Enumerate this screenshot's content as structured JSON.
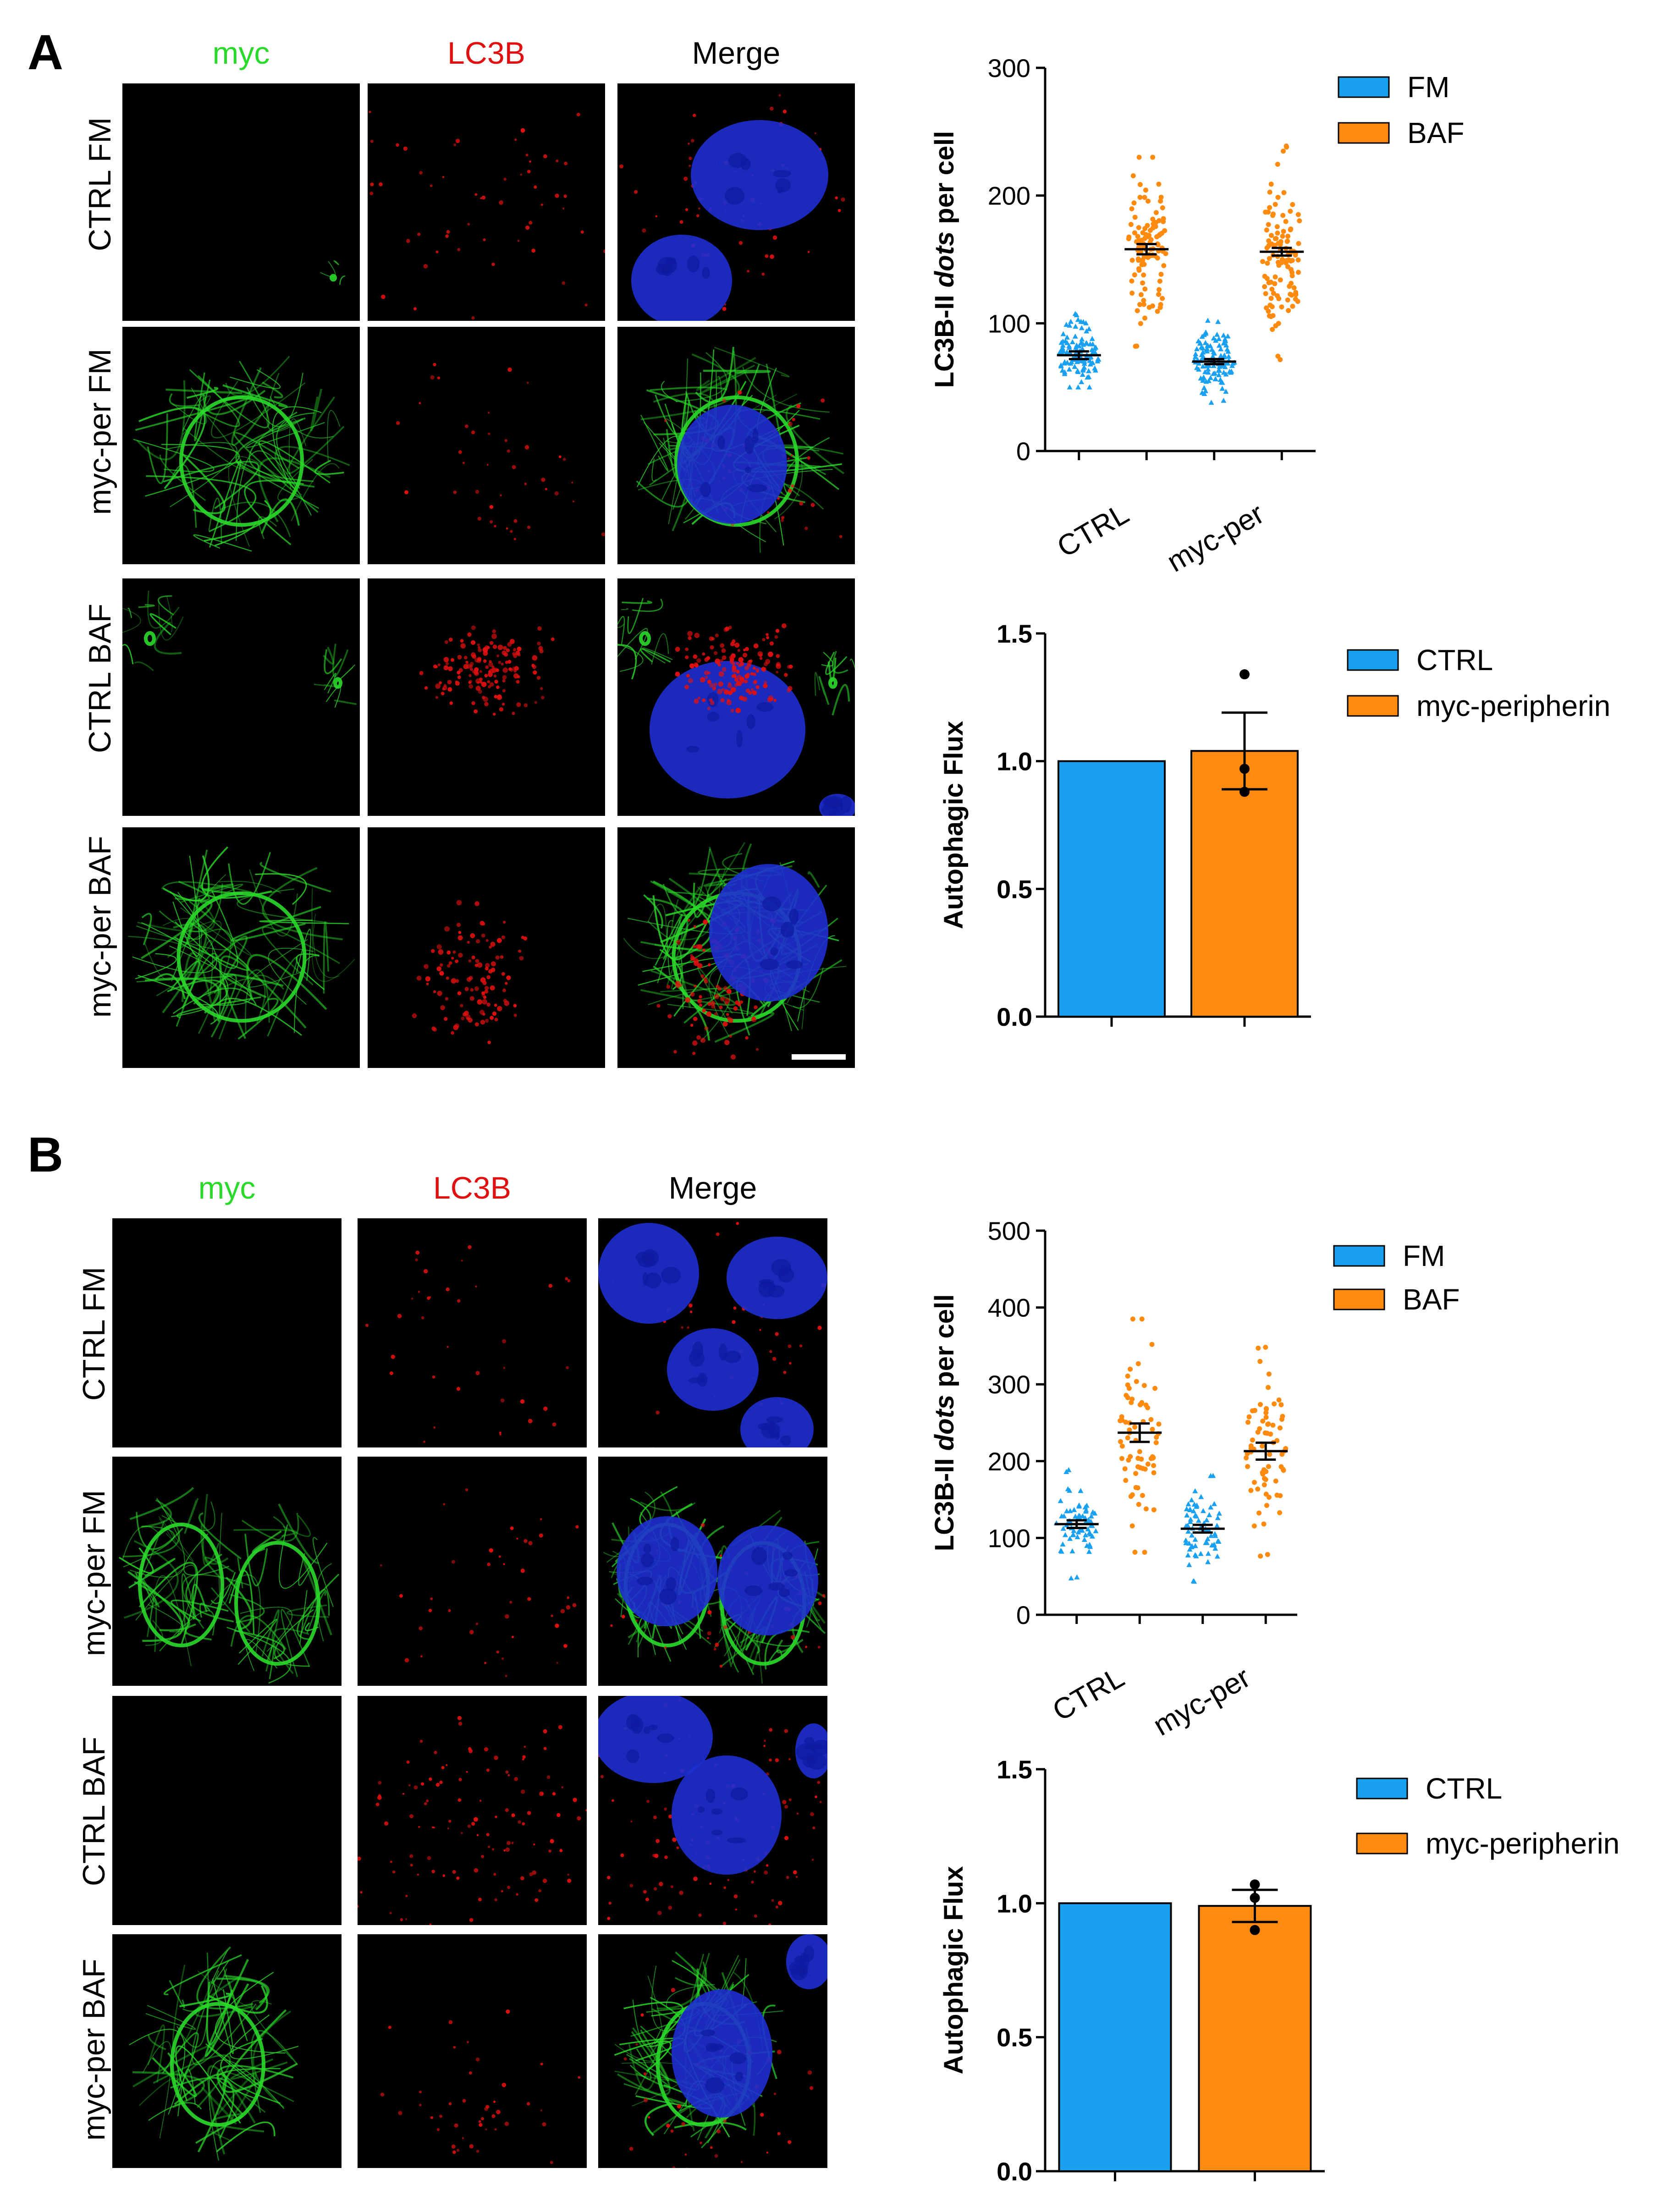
{
  "panels": [
    {
      "letter": "A",
      "columns": [
        "myc",
        "LC3B",
        "Merge"
      ],
      "rows": [
        "CTRL FM",
        "myc-per FM",
        "CTRL BAF",
        "myc-per BAF"
      ]
    },
    {
      "letter": "B",
      "columns": [
        "myc",
        "LC3B",
        "Merge"
      ],
      "rows": [
        "CTRL FM",
        "myc-per FM",
        "CTRL BAF",
        "myc-per BAF"
      ]
    }
  ],
  "colors": {
    "green": "#2bd92b",
    "red": "#e01010",
    "blue": "#1e2fd0",
    "series_blue": "#1aa0f0",
    "series_orange": "#ff8a10"
  },
  "chart_data": [
    {
      "id": "A-dots",
      "type": "scatter",
      "ylabel_prefix": "LC3B-II ",
      "ylabel_italic": "dots",
      "ylabel_suffix": " per cell",
      "categories": [
        "CTRL",
        "myc-per"
      ],
      "ylim": [
        0,
        300
      ],
      "yticks": [
        "0",
        "100",
        "200",
        "300"
      ],
      "series": [
        {
          "name": "FM",
          "color": "#1aa0f0",
          "marker": "triangle",
          "means": [
            75,
            70
          ],
          "sem": [
            3,
            2
          ],
          "range": [
            [
              50,
              120
            ],
            [
              38,
              108
            ]
          ],
          "n": 110
        },
        {
          "name": "BAF",
          "color": "#ff8a10",
          "marker": "circle",
          "means": [
            158,
            156
          ],
          "sem": [
            4,
            3
          ],
          "range": [
            [
              65,
              230
            ],
            [
              65,
              245
            ]
          ],
          "n": 110
        }
      ],
      "legend": "right"
    },
    {
      "id": "A-flux",
      "type": "bar",
      "ylabel": "Autophagic Flux",
      "ylim": [
        0,
        1.5
      ],
      "yticks": [
        "0.0",
        "0.5",
        "1.0",
        "1.5"
      ],
      "series": [
        {
          "name": "CTRL",
          "color": "#1aa0f0",
          "value": 1.0,
          "sem": 0,
          "points": []
        },
        {
          "name": "myc-peripherin",
          "color": "#ff8a10",
          "value": 1.04,
          "sem": 0.15,
          "points": [
            1.34,
            0.97,
            0.88
          ]
        }
      ],
      "legend": "right"
    },
    {
      "id": "B-dots",
      "type": "scatter",
      "ylabel_prefix": "LC3B-II ",
      "ylabel_italic": "dots",
      "ylabel_suffix": " per cell",
      "categories": [
        "CTRL",
        "myc-per"
      ],
      "ylim": [
        0,
        500
      ],
      "yticks": [
        "0",
        "100",
        "200",
        "300",
        "400",
        "500"
      ],
      "series": [
        {
          "name": "FM",
          "color": "#1aa0f0",
          "marker": "triangle",
          "means": [
            118,
            112
          ],
          "sem": [
            5,
            5
          ],
          "range": [
            [
              45,
              195
            ],
            [
              40,
              190
            ]
          ],
          "n": 70
        },
        {
          "name": "BAF",
          "color": "#ff8a10",
          "marker": "circle",
          "means": [
            237,
            213
          ],
          "sem": [
            12,
            11
          ],
          "range": [
            [
              55,
              385
            ],
            [
              65,
              355
            ]
          ],
          "n": 70
        }
      ],
      "legend": "right"
    },
    {
      "id": "B-flux",
      "type": "bar",
      "ylabel": "Autophagic Flux",
      "ylim": [
        0,
        1.5
      ],
      "yticks": [
        "0.0",
        "0.5",
        "1.0",
        "1.5"
      ],
      "series": [
        {
          "name": "CTRL",
          "color": "#1aa0f0",
          "value": 1.0,
          "sem": 0,
          "points": []
        },
        {
          "name": "myc-peripherin",
          "color": "#ff8a10",
          "value": 0.99,
          "sem": 0.06,
          "points": [
            1.07,
            1.02,
            0.9
          ]
        }
      ],
      "legend": "right"
    }
  ]
}
